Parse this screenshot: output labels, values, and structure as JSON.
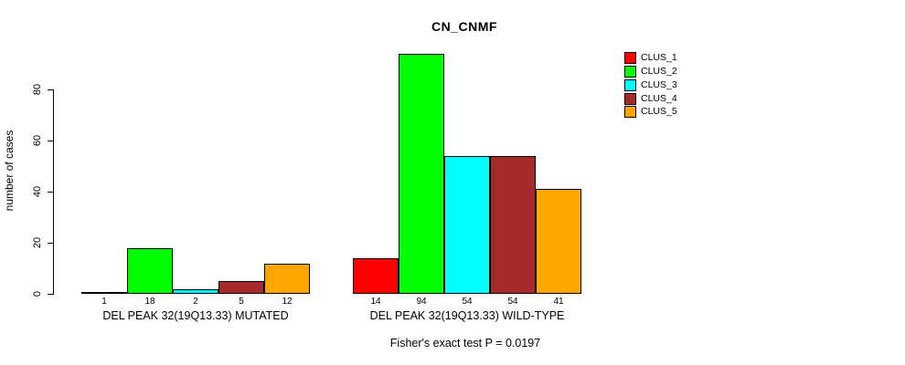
{
  "title": "CN_CNMF",
  "y_axis": {
    "label": "number of cases"
  },
  "footer": "Fisher's exact test P = 0.0197",
  "legend": {
    "items": [
      {
        "label": "CLUS_1",
        "color": "#ff0000"
      },
      {
        "label": "CLUS_2",
        "color": "#00ff00"
      },
      {
        "label": "CLUS_3",
        "color": "#00ffff"
      },
      {
        "label": "CLUS_4",
        "color": "#a52a2a"
      },
      {
        "label": "CLUS_5",
        "color": "#ffa500"
      }
    ]
  },
  "chart_data": {
    "type": "bar",
    "title": "CN_CNMF",
    "ylabel": "number of cases",
    "xlabel": "",
    "ylim": [
      0,
      94
    ],
    "y_ticks": [
      0,
      20,
      40,
      60,
      80
    ],
    "grid": false,
    "legend_position": "top-right",
    "bar_value_labels": true,
    "categories": [
      "DEL PEAK 32(19Q13.33) MUTATED",
      "DEL PEAK 32(19Q13.33) WILD-TYPE"
    ],
    "series": [
      {
        "name": "CLUS_1",
        "color": "#ff0000",
        "values": [
          1,
          14
        ]
      },
      {
        "name": "CLUS_2",
        "color": "#00ff00",
        "values": [
          18,
          94
        ]
      },
      {
        "name": "CLUS_3",
        "color": "#00ffff",
        "values": [
          2,
          54
        ]
      },
      {
        "name": "CLUS_4",
        "color": "#a52a2a",
        "values": [
          5,
          54
        ]
      },
      {
        "name": "CLUS_5",
        "color": "#ffa500",
        "values": [
          12,
          41
        ]
      }
    ],
    "annotation": "Fisher's exact test P = 0.0197"
  }
}
